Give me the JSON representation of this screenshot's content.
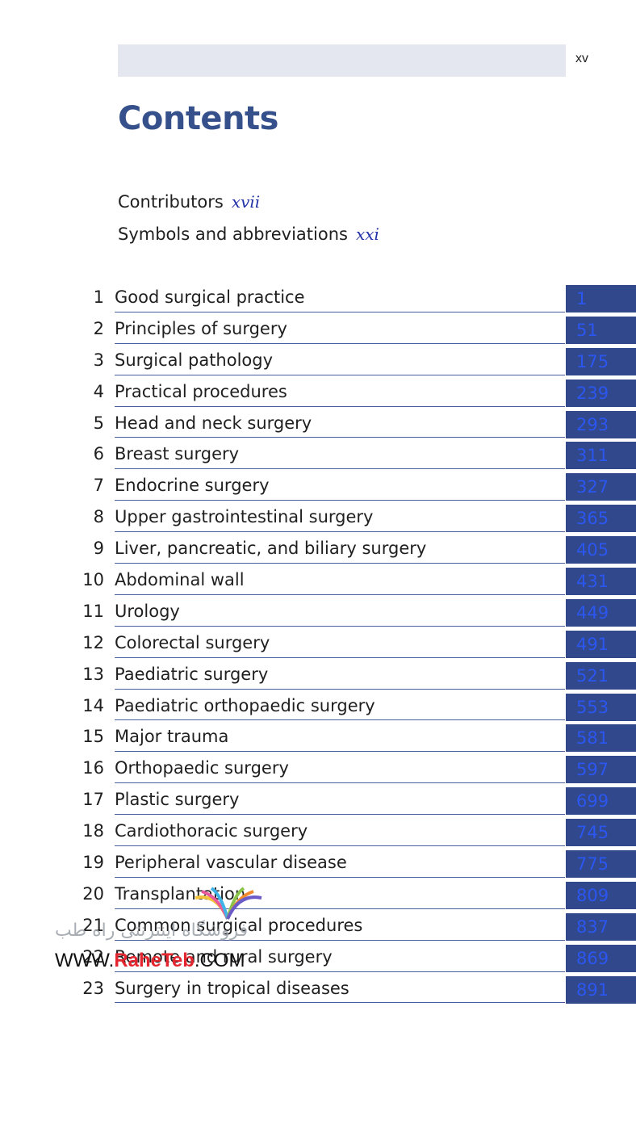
{
  "page_number": "xv",
  "title": "Contents",
  "prelims": [
    {
      "label": "Contributors",
      "page": "xvii"
    },
    {
      "label": "Symbols and abbreviations",
      "page": "xxi"
    }
  ],
  "chapters": [
    {
      "num": "1",
      "title": "Good surgical practice",
      "page": "1"
    },
    {
      "num": "2",
      "title": "Principles of surgery",
      "page": "51"
    },
    {
      "num": "3",
      "title": "Surgical pathology",
      "page": "175"
    },
    {
      "num": "4",
      "title": "Practical procedures",
      "page": "239"
    },
    {
      "num": "5",
      "title": "Head and neck surgery",
      "page": "293"
    },
    {
      "num": "6",
      "title": "Breast surgery",
      "page": "311"
    },
    {
      "num": "7",
      "title": "Endocrine surgery",
      "page": "327"
    },
    {
      "num": "8",
      "title": "Upper gastrointestinal surgery",
      "page": "365"
    },
    {
      "num": "9",
      "title": "Liver, pancreatic, and biliary surgery",
      "page": "405"
    },
    {
      "num": "10",
      "title": "Abdominal wall",
      "page": "431"
    },
    {
      "num": "11",
      "title": "Urology",
      "page": "449"
    },
    {
      "num": "12",
      "title": "Colorectal surgery",
      "page": "491"
    },
    {
      "num": "13",
      "title": "Paediatric surgery",
      "page": "521"
    },
    {
      "num": "14",
      "title": "Paediatric orthopaedic surgery",
      "page": "553"
    },
    {
      "num": "15",
      "title": "Major trauma",
      "page": "581"
    },
    {
      "num": "16",
      "title": "Orthopaedic surgery",
      "page": "597"
    },
    {
      "num": "17",
      "title": "Plastic surgery",
      "page": "699"
    },
    {
      "num": "18",
      "title": "Cardiothoracic surgery",
      "page": "745"
    },
    {
      "num": "19",
      "title": "Peripheral vascular disease",
      "page": "775"
    },
    {
      "num": "20",
      "title": "Transplantation",
      "page": "809"
    },
    {
      "num": "21",
      "title": "Common surgical procedures",
      "page": "837"
    },
    {
      "num": "22",
      "title": "Remote and rural surgery",
      "page": "869"
    },
    {
      "num": "23",
      "title": "Surgery in tropical diseases",
      "page": "891"
    }
  ],
  "watermark": {
    "persian_text": "فروشگاه اینترنتی راه طب",
    "url_prefix": "WWW.",
    "url_brand": "RaheTeb",
    "url_suffix": ".COM"
  },
  "colors": {
    "accent": "#35508a",
    "page_box": "#31498c",
    "page_text": "#2b56f0",
    "header_bar": "#e4e7f0"
  }
}
